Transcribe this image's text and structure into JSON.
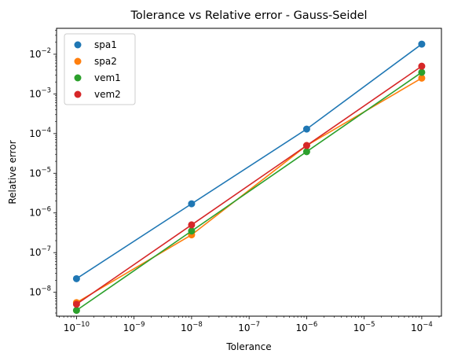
{
  "chart_data": {
    "type": "scatter",
    "title": "Tolerance vs Relative error - Gauss-Seidel",
    "xlabel": "Tolerance",
    "ylabel": "Relative error",
    "xscale": "log",
    "yscale": "log",
    "x": [
      1e-10,
      1e-08,
      1e-06,
      0.0001
    ],
    "xlim": [
      4.5e-11,
      0.00022
    ],
    "ylim": [
      2.5e-09,
      0.045
    ],
    "x_ticks": [
      {
        "value": 1e-10,
        "base": "10",
        "exp": "−10"
      },
      {
        "value": 1e-09,
        "base": "10",
        "exp": "−9"
      },
      {
        "value": 1e-08,
        "base": "10",
        "exp": "−8"
      },
      {
        "value": 1e-07,
        "base": "10",
        "exp": "−7"
      },
      {
        "value": 1e-06,
        "base": "10",
        "exp": "−6"
      },
      {
        "value": 1e-05,
        "base": "10",
        "exp": "−5"
      },
      {
        "value": 0.0001,
        "base": "10",
        "exp": "−4"
      }
    ],
    "y_ticks": [
      {
        "value": 1e-08,
        "base": "10",
        "exp": "−8"
      },
      {
        "value": 1e-07,
        "base": "10",
        "exp": "−7"
      },
      {
        "value": 1e-06,
        "base": "10",
        "exp": "−6"
      },
      {
        "value": 1e-05,
        "base": "10",
        "exp": "−5"
      },
      {
        "value": 0.0001,
        "base": "10",
        "exp": "−4"
      },
      {
        "value": 0.001,
        "base": "10",
        "exp": "−3"
      },
      {
        "value": 0.01,
        "base": "10",
        "exp": "−2"
      }
    ],
    "series": [
      {
        "name": "spa1",
        "color": "#1f77b4",
        "values": [
          2.2e-08,
          1.7e-06,
          0.00013,
          0.018
        ]
      },
      {
        "name": "spa2",
        "color": "#ff7f0e",
        "values": [
          5.5e-09,
          2.8e-07,
          5e-05,
          0.0025
        ]
      },
      {
        "name": "vem1",
        "color": "#2ca02c",
        "values": [
          3.5e-09,
          3.5e-07,
          3.5e-05,
          0.0035
        ]
      },
      {
        "name": "vem2",
        "color": "#d62728",
        "values": [
          5e-09,
          5e-07,
          5e-05,
          0.005
        ]
      }
    ],
    "legend": "top-left",
    "grid": false
  }
}
